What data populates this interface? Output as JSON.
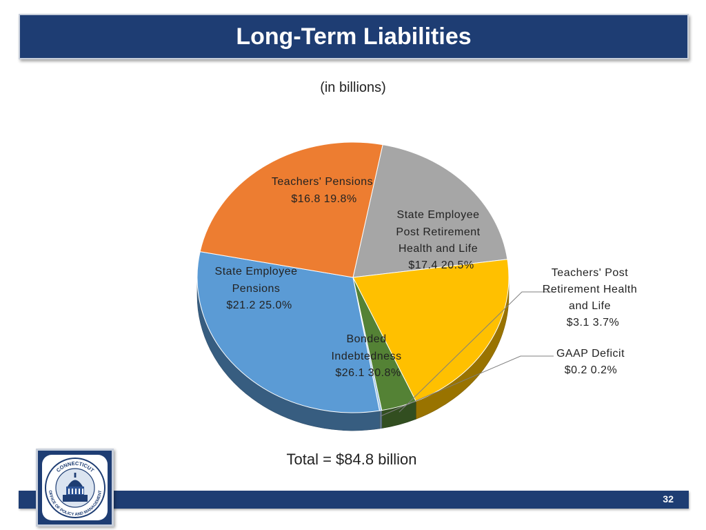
{
  "header": {
    "title": "Long-Term Liabilities"
  },
  "chart_data": {
    "type": "pie",
    "title": "Long-Term Liabilities",
    "subtitle": "(in billions)",
    "slices": [
      {
        "name": "Teachers' Pensions",
        "label_lines": [
          "Teachers' Pensions"
        ],
        "value_text": "$16.8  19.8%",
        "value": 16.8,
        "percent": 19.8,
        "color": "#a6a6a6"
      },
      {
        "name": "State Employee Post Retirement Health and Life",
        "label_lines": [
          "State Employee",
          "Post Retirement",
          "Health and Life"
        ],
        "value_text": "$17.4  20.5%",
        "value": 17.4,
        "percent": 20.5,
        "color": "#ffc000"
      },
      {
        "name": "Teachers' Post Retirement Health and Life",
        "label_lines": [
          "Teachers' Post",
          "Retirement Health",
          "and Life"
        ],
        "value_text": "$3.1  3.7%",
        "value": 3.1,
        "percent": 3.7,
        "color": "#548235"
      },
      {
        "name": "GAAP Deficit",
        "label_lines": [
          "GAAP Deficit"
        ],
        "value_text": "$0.2  0.2%",
        "value": 0.2,
        "percent": 0.2,
        "color": "#9dc3e6"
      },
      {
        "name": "Bonded Indebtedness",
        "label_lines": [
          "Bonded",
          "Indebtedness"
        ],
        "value_text": "$26.1  30.8%",
        "value": 26.1,
        "percent": 30.8,
        "color": "#5b9bd5"
      },
      {
        "name": "State Employee Pensions",
        "label_lines": [
          "State Employee",
          "Pensions"
        ],
        "value_text": "$21.2  25.0%",
        "value": 21.2,
        "percent": 25.0,
        "color": "#ed7d31"
      }
    ],
    "total_text": "Total = $84.8 billion"
  },
  "logo": {
    "top_text": "CONNECTICUT",
    "bottom_text": "OFFICE OF POLICY AND MANAGEMENT"
  },
  "footer": {
    "page_number": "32"
  }
}
